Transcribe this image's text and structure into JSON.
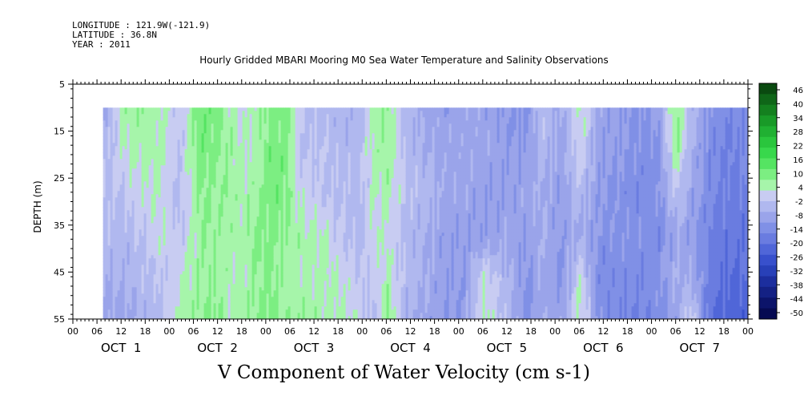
{
  "header": {
    "longitude": "LONGITUDE : 121.9W(-121.9)",
    "latitude": "LATITUDE : 36.8N",
    "year": "YEAR : 2011"
  },
  "chart_data": {
    "type": "heatmap",
    "title": "Hourly Gridded MBARI Mooring M0 Sea Water Temperature and Salinity Observations",
    "xlabel": "V Component of Water Velocity (cm s-1)",
    "ylabel": "DEPTH (m)",
    "ylim": [
      55,
      5
    ],
    "y_ticks": [
      5,
      15,
      25,
      35,
      45,
      55
    ],
    "x_hour_ticks": [
      "00",
      "06",
      "12",
      "18",
      "00",
      "06",
      "12",
      "18",
      "00",
      "06",
      "12",
      "18",
      "00",
      "06",
      "12",
      "18",
      "00",
      "06",
      "12",
      "18",
      "00",
      "06",
      "12",
      "18",
      "00",
      "06",
      "12",
      "18",
      "00"
    ],
    "x_day_labels": [
      "OCT  1",
      "OCT  2",
      "OCT  3",
      "OCT  4",
      "OCT  5",
      "OCT  6",
      "OCT  7"
    ],
    "data_depth_range": [
      10,
      55
    ],
    "data_start_hour_oct1": 7.5,
    "colorbar": {
      "labels": [
        "46",
        "40",
        "34",
        "28",
        "22",
        "16",
        "10",
        "4",
        "-2",
        "-8",
        "-14",
        "-20",
        "-26",
        "-32",
        "-38",
        "-44",
        "-50"
      ],
      "colors": [
        "#0a4a10",
        "#0f6618",
        "#14801f",
        "#199a28",
        "#20b032",
        "#2ac63d",
        "#38d84c",
        "#55e462",
        "#7cee82",
        "#a6f5aa",
        "#c8ccf2",
        "#b0b8ef",
        "#9aa4ea",
        "#8090e6",
        "#6a7ce0",
        "#5066d8",
        "#3850cc",
        "#2840b8",
        "#1c2e9e",
        "#142184",
        "#0c146a",
        "#060a52"
      ]
    },
    "profile_columns": [
      {
        "day": 0.35,
        "v": [
          -6,
          -4,
          -2,
          -4,
          -6,
          -8
        ]
      },
      {
        "day": 0.5,
        "v": [
          4,
          2,
          -2,
          -4,
          -6,
          -8
        ]
      },
      {
        "day": 0.7,
        "v": [
          6,
          4,
          2,
          -2,
          -4,
          -6
        ]
      },
      {
        "day": 0.9,
        "v": [
          4,
          4,
          2,
          2,
          -2,
          -4
        ]
      },
      {
        "day": 1.1,
        "v": [
          -2,
          -2,
          -4,
          -2,
          2,
          4
        ]
      },
      {
        "day": 1.3,
        "v": [
          10,
          10,
          8,
          6,
          6,
          6
        ]
      },
      {
        "day": 1.45,
        "v": [
          10,
          8,
          6,
          6,
          6,
          8
        ]
      },
      {
        "day": 1.6,
        "v": [
          4,
          6,
          6,
          4,
          4,
          4
        ]
      },
      {
        "day": 1.75,
        "v": [
          2,
          2,
          4,
          4,
          4,
          6
        ]
      },
      {
        "day": 1.9,
        "v": [
          4,
          4,
          6,
          8,
          6,
          8
        ]
      },
      {
        "day": 2.05,
        "v": [
          8,
          10,
          10,
          8,
          8,
          8
        ]
      },
      {
        "day": 2.2,
        "v": [
          10,
          8,
          8,
          6,
          4,
          6
        ]
      },
      {
        "day": 2.35,
        "v": [
          -2,
          -2,
          2,
          4,
          4,
          6
        ]
      },
      {
        "day": 2.55,
        "v": [
          -4,
          -2,
          -2,
          4,
          4,
          4
        ]
      },
      {
        "day": 2.75,
        "v": [
          -4,
          -4,
          -2,
          -2,
          2,
          4
        ]
      },
      {
        "day": 2.95,
        "v": [
          -6,
          -4,
          -4,
          -4,
          -2,
          2
        ]
      },
      {
        "day": 3.1,
        "v": [
          4,
          4,
          2,
          2,
          -2,
          -4
        ]
      },
      {
        "day": 3.25,
        "v": [
          6,
          6,
          4,
          2,
          4,
          8
        ]
      },
      {
        "day": 3.45,
        "v": [
          -4,
          -4,
          -2,
          -4,
          -4,
          -6
        ]
      },
      {
        "day": 3.65,
        "v": [
          -8,
          -6,
          -4,
          -6,
          -6,
          -8
        ]
      },
      {
        "day": 3.85,
        "v": [
          -10,
          -8,
          -8,
          -10,
          -10,
          -10
        ]
      },
      {
        "day": 4.05,
        "v": [
          -8,
          -8,
          -8,
          -10,
          -10,
          -10
        ]
      },
      {
        "day": 4.25,
        "v": [
          -8,
          -8,
          -10,
          -10,
          2,
          4
        ]
      },
      {
        "day": 4.45,
        "v": [
          -10,
          -10,
          -10,
          -8,
          -4,
          -2
        ]
      },
      {
        "day": 4.7,
        "v": [
          -12,
          -10,
          -8,
          -10,
          -12,
          -12
        ]
      },
      {
        "day": 4.85,
        "v": [
          -2,
          -4,
          -6,
          -6,
          -8,
          -6
        ]
      },
      {
        "day": 5.05,
        "v": [
          -8,
          -8,
          -10,
          -10,
          -12,
          -8
        ]
      },
      {
        "day": 5.25,
        "v": [
          4,
          2,
          -4,
          -6,
          2,
          4
        ]
      },
      {
        "day": 5.45,
        "v": [
          -8,
          -10,
          -10,
          -12,
          -14,
          -12
        ]
      },
      {
        "day": 5.65,
        "v": [
          -10,
          -10,
          -12,
          -12,
          -14,
          -14
        ]
      },
      {
        "day": 5.85,
        "v": [
          -12,
          -12,
          -14,
          -12,
          -14,
          -16
        ]
      },
      {
        "day": 6.05,
        "v": [
          -10,
          -12,
          -12,
          -14,
          -12,
          -14
        ]
      },
      {
        "day": 6.25,
        "v": [
          8,
          6,
          -2,
          -8,
          -6,
          -8
        ]
      },
      {
        "day": 6.4,
        "v": [
          -4,
          -6,
          -8,
          -10,
          -8,
          2
        ]
      },
      {
        "day": 6.6,
        "v": [
          -12,
          -14,
          -14,
          -16,
          -16,
          -20
        ]
      },
      {
        "day": 6.8,
        "v": [
          -14,
          -16,
          -16,
          -18,
          -20,
          -22
        ]
      },
      {
        "day": 7.0,
        "v": [
          -14,
          -14,
          -16,
          -18,
          -20,
          -22
        ]
      }
    ]
  }
}
